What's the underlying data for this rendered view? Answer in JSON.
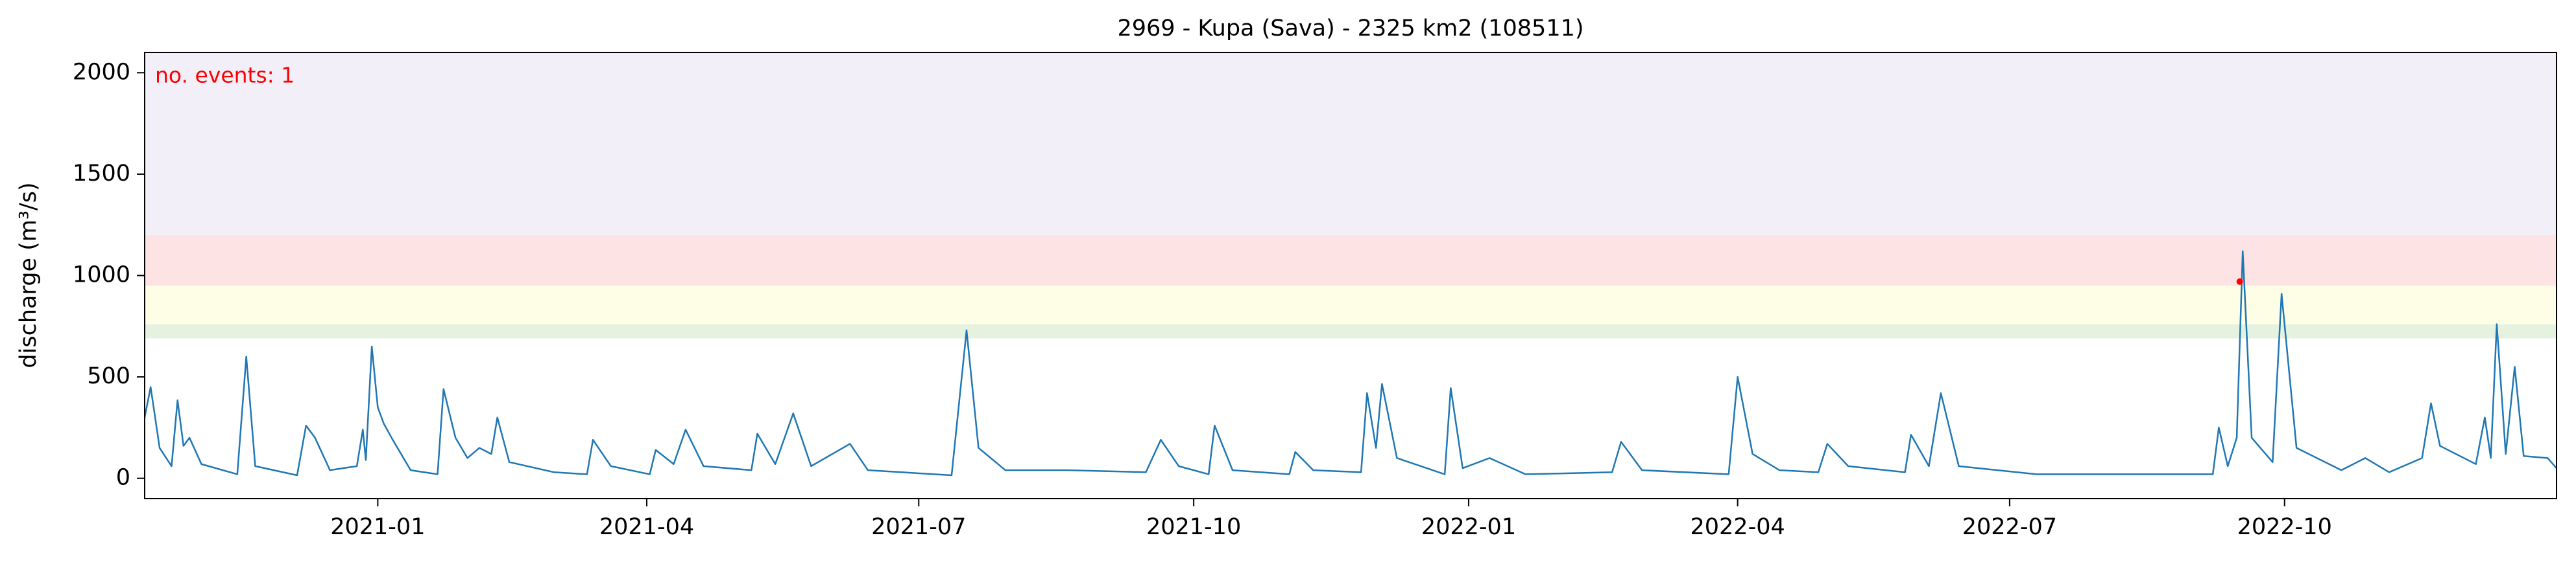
{
  "chart_data": {
    "type": "line",
    "title": "2969 - Kupa (Sava) - 2325 km2 (108511)",
    "y_label": "discharge (m³/s)",
    "annotation": "no. events: 1",
    "annotation_color": "#ff0000",
    "xlim": [
      "2020-10-15",
      "2022-12-31"
    ],
    "ylim": [
      -100,
      2100
    ],
    "yticks": [
      0,
      500,
      1000,
      1500,
      2000
    ],
    "xticks": [
      {
        "value": "2021-01-01",
        "label": "2021-01"
      },
      {
        "value": "2021-04-01",
        "label": "2021-04"
      },
      {
        "value": "2021-07-01",
        "label": "2021-07"
      },
      {
        "value": "2021-10-01",
        "label": "2021-10"
      },
      {
        "value": "2022-01-01",
        "label": "2022-01"
      },
      {
        "value": "2022-04-01",
        "label": "2022-04"
      },
      {
        "value": "2022-07-01",
        "label": "2022-07"
      },
      {
        "value": "2022-10-01",
        "label": "2022-10"
      }
    ],
    "bands": [
      {
        "range": [
          690,
          760
        ],
        "color": "#e5f2e0"
      },
      {
        "range": [
          760,
          950
        ],
        "color": "#fefee6"
      },
      {
        "range": [
          950,
          1200
        ],
        "color": "#fde3e4"
      },
      {
        "range": [
          1200,
          2100
        ],
        "color": "#f2eff9"
      }
    ],
    "x": [
      "2020-10-15",
      "2020-10-17",
      "2020-10-20",
      "2020-10-24",
      "2020-10-26",
      "2020-10-28",
      "2020-10-30",
      "2020-11-03",
      "2020-11-15",
      "2020-11-18",
      "2020-11-21",
      "2020-12-05",
      "2020-12-08",
      "2020-12-11",
      "2020-12-16",
      "2020-12-25",
      "2020-12-27",
      "2020-12-28",
      "2020-12-30",
      "2021-01-01",
      "2021-01-03",
      "2021-01-06",
      "2021-01-12",
      "2021-01-21",
      "2021-01-23",
      "2021-01-27",
      "2021-01-31",
      "2021-02-04",
      "2021-02-08",
      "2021-02-10",
      "2021-02-14",
      "2021-03-01",
      "2021-03-12",
      "2021-03-14",
      "2021-03-20",
      "2021-04-02",
      "2021-04-04",
      "2021-04-10",
      "2021-04-14",
      "2021-04-20",
      "2021-05-06",
      "2021-05-08",
      "2021-05-14",
      "2021-05-20",
      "2021-05-26",
      "2021-06-08",
      "2021-06-14",
      "2021-07-12",
      "2021-07-17",
      "2021-07-21",
      "2021-07-30",
      "2021-08-20",
      "2021-09-15",
      "2021-09-20",
      "2021-09-26",
      "2021-10-06",
      "2021-10-08",
      "2021-10-14",
      "2021-11-02",
      "2021-11-04",
      "2021-11-10",
      "2021-11-26",
      "2021-11-28",
      "2021-12-01",
      "2021-12-03",
      "2021-12-08",
      "2021-12-24",
      "2021-12-26",
      "2021-12-30",
      "2022-01-08",
      "2022-01-20",
      "2022-02-18",
      "2022-02-21",
      "2022-02-28",
      "2022-03-29",
      "2022-04-01",
      "2022-04-06",
      "2022-04-15",
      "2022-04-28",
      "2022-05-01",
      "2022-05-08",
      "2022-05-27",
      "2022-05-29",
      "2022-06-04",
      "2022-06-08",
      "2022-06-14",
      "2022-07-10",
      "2022-08-15",
      "2022-09-07",
      "2022-09-09",
      "2022-09-12",
      "2022-09-15",
      "2022-09-17",
      "2022-09-20",
      "2022-09-27",
      "2022-09-30",
      "2022-10-05",
      "2022-10-20",
      "2022-10-28",
      "2022-11-05",
      "2022-11-16",
      "2022-11-19",
      "2022-11-22",
      "2022-12-04",
      "2022-12-07",
      "2022-12-09",
      "2022-12-11",
      "2022-12-14",
      "2022-12-17",
      "2022-12-20",
      "2022-12-28",
      "2022-12-31"
    ],
    "series": [
      {
        "color": "#1f77b4",
        "values": [
          300,
          450,
          150,
          60,
          385,
          160,
          200,
          70,
          20,
          600,
          60,
          15,
          260,
          200,
          40,
          60,
          240,
          90,
          650,
          350,
          270,
          190,
          40,
          20,
          440,
          200,
          100,
          150,
          120,
          300,
          80,
          30,
          20,
          190,
          60,
          20,
          140,
          70,
          240,
          60,
          40,
          220,
          70,
          320,
          60,
          170,
          40,
          15,
          730,
          150,
          40,
          40,
          30,
          190,
          60,
          20,
          260,
          40,
          20,
          130,
          40,
          30,
          420,
          150,
          465,
          100,
          20,
          445,
          50,
          100,
          20,
          30,
          180,
          40,
          20,
          500,
          120,
          40,
          30,
          170,
          60,
          30,
          215,
          60,
          420,
          60,
          20,
          20,
          20,
          250,
          60,
          200,
          1120,
          200,
          80,
          910,
          150,
          40,
          100,
          30,
          100,
          370,
          160,
          70,
          300,
          100,
          760,
          120,
          550,
          110,
          100,
          50
        ]
      }
    ],
    "events": {
      "color": "#ff0000",
      "x": [
        "2022-09-16"
      ],
      "values": [
        970
      ]
    }
  }
}
